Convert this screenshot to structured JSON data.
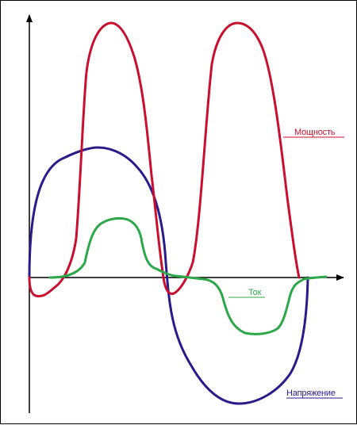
{
  "labels": {
    "power": "Мощность",
    "current": "Ток",
    "voltage": "Напряжение"
  },
  "colors": {
    "power": "#c8102e",
    "current": "#2ca84a",
    "voltage": "#2a1a8a",
    "axes": "#000000"
  }
}
